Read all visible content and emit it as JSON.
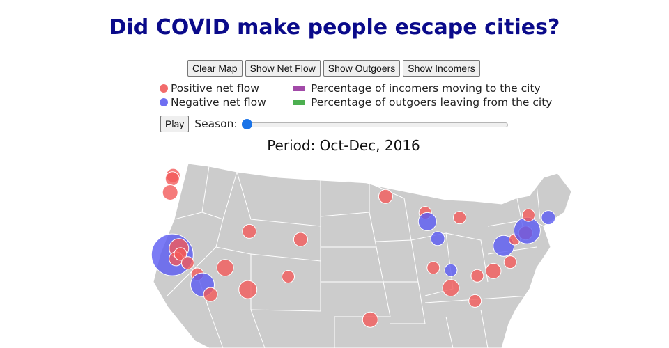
{
  "title": "Did COVID make people escape cities?",
  "buttons": [
    {
      "id": "clear",
      "label": "Clear Map"
    },
    {
      "id": "net",
      "label": "Show Net Flow"
    },
    {
      "id": "out",
      "label": "Show Outgoers"
    },
    {
      "id": "in",
      "label": "Show Incomers"
    }
  ],
  "legend": {
    "positive": {
      "label": "Positive net flow",
      "color": "#f26b6b"
    },
    "negative": {
      "label": "Negative net flow",
      "color": "#6f6ff2"
    },
    "incomers": {
      "label": "Percentage of incomers moving to the city",
      "color": "#a24aa8"
    },
    "outgoers": {
      "label": "Percentage of outgoers leaving from the city",
      "color": "#4caf50"
    }
  },
  "controls": {
    "play_label": "Play",
    "season_label": "Season:",
    "season_value": 0
  },
  "period": "Period: Oct-Dec, 2016",
  "colors": {
    "positive": "#f25a5a",
    "negative": "#5a5af2",
    "land": "#cccccc",
    "border": "#ffffff"
  },
  "chart_data": {
    "type": "scatter",
    "map": "US states",
    "size_encodes": "net flow magnitude",
    "points": [
      {
        "lon": -122.3,
        "lat": 47.6,
        "sign": "positive",
        "size": 1.0
      },
      {
        "lon": -122.4,
        "lat": 47.2,
        "sign": "positive",
        "size": 1.0
      },
      {
        "lon": -122.7,
        "lat": 45.5,
        "sign": "positive",
        "size": 1.1
      },
      {
        "lon": -122.4,
        "lat": 37.8,
        "sign": "negative",
        "size": 3.0
      },
      {
        "lon": -121.5,
        "lat": 38.6,
        "sign": "positive",
        "size": 1.4
      },
      {
        "lon": -121.9,
        "lat": 37.3,
        "sign": "positive",
        "size": 1.0
      },
      {
        "lon": -121.3,
        "lat": 37.9,
        "sign": "positive",
        "size": 0.9
      },
      {
        "lon": -120.3,
        "lat": 36.8,
        "sign": "positive",
        "size": 0.9
      },
      {
        "lon": -119.0,
        "lat": 35.4,
        "sign": "positive",
        "size": 0.9
      },
      {
        "lon": -118.3,
        "lat": 34.1,
        "sign": "negative",
        "size": 1.7
      },
      {
        "lon": -117.2,
        "lat": 32.9,
        "sign": "positive",
        "size": 1.0
      },
      {
        "lon": -115.2,
        "lat": 36.2,
        "sign": "positive",
        "size": 1.2
      },
      {
        "lon": -111.9,
        "lat": 40.7,
        "sign": "positive",
        "size": 1.0
      },
      {
        "lon": -112.1,
        "lat": 33.5,
        "sign": "positive",
        "size": 1.3
      },
      {
        "lon": -104.9,
        "lat": 39.7,
        "sign": "positive",
        "size": 1.0
      },
      {
        "lon": -106.6,
        "lat": 35.1,
        "sign": "positive",
        "size": 0.9
      },
      {
        "lon": -93.3,
        "lat": 45.0,
        "sign": "positive",
        "size": 1.0
      },
      {
        "lon": -87.9,
        "lat": 43.0,
        "sign": "positive",
        "size": 0.9
      },
      {
        "lon": -87.6,
        "lat": 41.9,
        "sign": "negative",
        "size": 1.3
      },
      {
        "lon": -83.2,
        "lat": 42.4,
        "sign": "positive",
        "size": 0.9
      },
      {
        "lon": -86.2,
        "lat": 39.8,
        "sign": "negative",
        "size": 1.0
      },
      {
        "lon": -86.8,
        "lat": 36.2,
        "sign": "positive",
        "size": 0.9
      },
      {
        "lon": -84.4,
        "lat": 35.9,
        "sign": "negative",
        "size": 0.9
      },
      {
        "lon": -80.8,
        "lat": 35.2,
        "sign": "positive",
        "size": 0.9
      },
      {
        "lon": -78.6,
        "lat": 35.8,
        "sign": "positive",
        "size": 1.1
      },
      {
        "lon": -84.4,
        "lat": 33.7,
        "sign": "positive",
        "size": 1.2
      },
      {
        "lon": -81.1,
        "lat": 32.1,
        "sign": "positive",
        "size": 0.9
      },
      {
        "lon": -76.3,
        "lat": 36.9,
        "sign": "positive",
        "size": 0.9
      },
      {
        "lon": -77.2,
        "lat": 38.9,
        "sign": "negative",
        "size": 1.5
      },
      {
        "lon": -75.7,
        "lat": 39.7,
        "sign": "positive",
        "size": 0.8
      },
      {
        "lon": -74.2,
        "lat": 40.5,
        "sign": "positive",
        "size": 1.0
      },
      {
        "lon": -74.0,
        "lat": 40.8,
        "sign": "negative",
        "size": 1.9
      },
      {
        "lon": -73.8,
        "lat": 42.7,
        "sign": "positive",
        "size": 0.9
      },
      {
        "lon": -71.1,
        "lat": 42.4,
        "sign": "negative",
        "size": 1.0
      },
      {
        "lon": -95.4,
        "lat": 29.8,
        "sign": "positive",
        "size": 1.1
      }
    ]
  }
}
